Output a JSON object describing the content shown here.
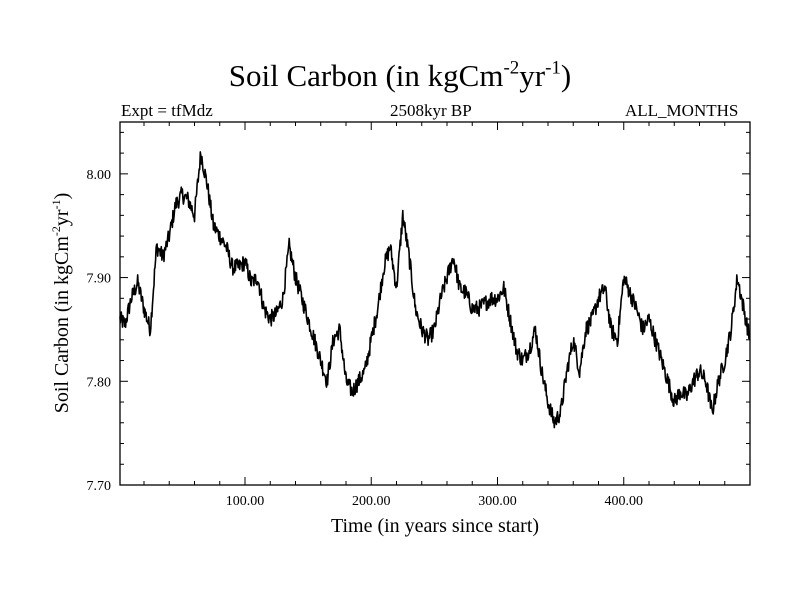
{
  "header": {
    "title_main": "Soil Carbon (in kgCm",
    "title_exp1": "-2",
    "title_mid": "yr",
    "title_exp2": "-1",
    "title_end": ")",
    "experiment": "Expt = tfMdz",
    "period": "2508kyr BP",
    "months": "ALL_MONTHS"
  },
  "chart_data": {
    "type": "line",
    "title": "Soil Carbon (in kgCm-2yr-1)",
    "xlabel": "Time (in years since start)",
    "ylabel_main": "Soil Carbon (in kgCm",
    "ylabel_exp1": "-2",
    "ylabel_mid": "yr",
    "ylabel_exp2": "-1",
    "ylabel_end": ")",
    "xlim": [
      1,
      500
    ],
    "ylim": [
      7.7,
      8.05
    ],
    "x_ticks": [
      100,
      200,
      300,
      400
    ],
    "x_tick_labels": [
      "100.00",
      "200.00",
      "300.00",
      "400.00"
    ],
    "y_ticks": [
      7.7,
      7.8,
      7.9,
      8.0
    ],
    "y_tick_labels": [
      "7.70",
      "7.80",
      "7.90",
      "8.00"
    ],
    "series": [
      {
        "name": "Soil Carbon",
        "x": [
          1,
          5,
          10,
          15,
          20,
          25,
          30,
          35,
          40,
          45,
          50,
          55,
          60,
          65,
          70,
          75,
          80,
          85,
          90,
          95,
          100,
          105,
          110,
          115,
          120,
          125,
          130,
          135,
          140,
          145,
          150,
          155,
          160,
          165,
          170,
          175,
          180,
          185,
          190,
          195,
          200,
          205,
          210,
          215,
          220,
          225,
          230,
          235,
          240,
          245,
          250,
          255,
          260,
          265,
          270,
          275,
          280,
          285,
          290,
          295,
          300,
          305,
          310,
          315,
          320,
          325,
          330,
          335,
          340,
          345,
          350,
          355,
          360,
          365,
          370,
          375,
          380,
          385,
          390,
          395,
          400,
          405,
          410,
          415,
          420,
          425,
          430,
          435,
          440,
          445,
          450,
          455,
          460,
          465,
          470,
          475,
          480,
          485,
          490,
          495,
          500
        ],
        "values": [
          7.86,
          7.855,
          7.88,
          7.895,
          7.87,
          7.85,
          7.93,
          7.92,
          7.94,
          7.97,
          7.98,
          7.975,
          7.96,
          8.02,
          7.99,
          7.95,
          7.94,
          7.93,
          7.91,
          7.91,
          7.915,
          7.895,
          7.9,
          7.87,
          7.86,
          7.865,
          7.88,
          7.93,
          7.9,
          7.88,
          7.86,
          7.84,
          7.82,
          7.8,
          7.84,
          7.85,
          7.8,
          7.79,
          7.8,
          7.81,
          7.84,
          7.87,
          7.91,
          7.93,
          7.89,
          7.96,
          7.92,
          7.87,
          7.85,
          7.84,
          7.85,
          7.88,
          7.9,
          7.92,
          7.89,
          7.885,
          7.87,
          7.87,
          7.875,
          7.88,
          7.88,
          7.89,
          7.86,
          7.83,
          7.82,
          7.83,
          7.85,
          7.81,
          7.78,
          7.76,
          7.77,
          7.81,
          7.84,
          7.81,
          7.85,
          7.86,
          7.88,
          7.89,
          7.85,
          7.84,
          7.9,
          7.885,
          7.87,
          7.85,
          7.86,
          7.84,
          7.82,
          7.8,
          7.78,
          7.79,
          7.785,
          7.8,
          7.81,
          7.8,
          7.77,
          7.8,
          7.82,
          7.85,
          7.9,
          7.87,
          7.84
        ]
      }
    ]
  }
}
